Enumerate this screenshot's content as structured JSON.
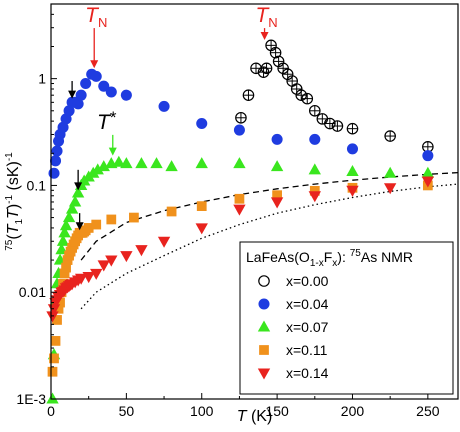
{
  "chart_data": {
    "type": "scatter",
    "title": "",
    "xlabel": "T (K)",
    "ylabel": "75(T1T)-1 (sK)-1",
    "xlim": [
      0,
      270
    ],
    "ylim": [
      0.001,
      5
    ],
    "yscale": "log",
    "grid": false,
    "legend_position": "bottom-right",
    "legend_title": "LaFeAs(O1-xFx): 75As NMR",
    "x_ticks": [
      {
        "value": 0,
        "label": "0"
      },
      {
        "value": 50,
        "label": "50"
      },
      {
        "value": 100,
        "label": "100"
      },
      {
        "value": 150,
        "label": "150"
      },
      {
        "value": 200,
        "label": "200"
      },
      {
        "value": 250,
        "label": "250"
      }
    ],
    "y_ticks": [
      {
        "value": 0.001,
        "label": "1E-3"
      },
      {
        "value": 0.01,
        "label": "0.01"
      },
      {
        "value": 0.1,
        "label": "0.1"
      },
      {
        "value": 1,
        "label": "1"
      }
    ],
    "series": [
      {
        "name": "x=0.00",
        "marker": "circle-open",
        "color": "#000000",
        "x": [
          126,
          131,
          136,
          141,
          143,
          146,
          149,
          151,
          154,
          157,
          160,
          163,
          166,
          170,
          175,
          180,
          185,
          190,
          200,
          225,
          250
        ],
        "y": [
          0.43,
          0.7,
          1.25,
          1.15,
          1.25,
          2.05,
          1.75,
          1.45,
          1.25,
          1.1,
          0.95,
          0.8,
          0.7,
          0.65,
          0.5,
          0.42,
          0.38,
          0.36,
          0.34,
          0.29,
          0.23
        ]
      },
      {
        "name": "x=0.04",
        "marker": "circle",
        "color": "#1f3ce0",
        "x": [
          2,
          3,
          4,
          5,
          6,
          8,
          10,
          12,
          14,
          16,
          18,
          20,
          23,
          27,
          30,
          35,
          40,
          50,
          75,
          100,
          125,
          150,
          175,
          200,
          250
        ],
        "y": [
          0.13,
          0.17,
          0.21,
          0.26,
          0.3,
          0.35,
          0.42,
          0.5,
          0.6,
          0.6,
          0.58,
          0.7,
          0.9,
          1.1,
          1.05,
          0.85,
          0.75,
          0.7,
          0.55,
          0.38,
          0.33,
          0.27,
          0.27,
          0.22,
          0.19
        ]
      },
      {
        "name": "x=0.07",
        "marker": "triangle-up",
        "color": "#3ae61e",
        "x": [
          1,
          2,
          3,
          4,
          5,
          6,
          7,
          8,
          9,
          10,
          12,
          14,
          16,
          18,
          20,
          22,
          25,
          28,
          31,
          35,
          40,
          45,
          50,
          60,
          70,
          80,
          100,
          125,
          150,
          175,
          200,
          225,
          250
        ],
        "y": [
          0.001,
          0.0026,
          0.008,
          0.012,
          0.015,
          0.02,
          0.025,
          0.03,
          0.036,
          0.042,
          0.05,
          0.06,
          0.07,
          0.085,
          0.1,
          0.11,
          0.12,
          0.13,
          0.14,
          0.15,
          0.16,
          0.165,
          0.16,
          0.16,
          0.16,
          0.15,
          0.16,
          0.16,
          0.15,
          0.14,
          0.135,
          0.13,
          0.13
        ]
      },
      {
        "name": "x=0.11",
        "marker": "square",
        "color": "#f0911c",
        "x": [
          1,
          2,
          3,
          4,
          5,
          6,
          7,
          8,
          9,
          10,
          11,
          12,
          13,
          14,
          15,
          16,
          17,
          18,
          19,
          20,
          21,
          22,
          23,
          25,
          30,
          40,
          55,
          80,
          100,
          125,
          150,
          175,
          200,
          250
        ],
        "y": [
          0.0018,
          0.0024,
          0.0035,
          0.0055,
          0.007,
          0.008,
          0.01,
          0.012,
          0.015,
          0.017,
          0.02,
          0.022,
          0.024,
          0.026,
          0.028,
          0.03,
          0.032,
          0.034,
          0.036,
          0.036,
          0.036,
          0.037,
          0.038,
          0.04,
          0.043,
          0.048,
          0.05,
          0.057,
          0.064,
          0.075,
          0.081,
          0.089,
          0.095,
          0.1
        ]
      },
      {
        "name": "x=0.14",
        "marker": "triangle-down",
        "color": "#e8231e",
        "x": [
          1,
          2,
          3,
          4,
          5,
          6,
          7,
          8,
          9,
          10,
          11,
          12,
          13,
          14,
          16,
          18,
          20,
          25,
          30,
          35,
          40,
          50,
          60,
          75,
          100,
          125,
          150,
          175,
          200,
          225,
          250
        ],
        "y": [
          0.006,
          0.007,
          0.008,
          0.0085,
          0.009,
          0.0095,
          0.01,
          0.0102,
          0.0105,
          0.011,
          0.0112,
          0.0115,
          0.0118,
          0.012,
          0.0125,
          0.013,
          0.0135,
          0.014,
          0.015,
          0.018,
          0.02,
          0.022,
          0.025,
          0.03,
          0.04,
          0.06,
          0.07,
          0.08,
          0.09,
          0.095,
          0.11
        ]
      }
    ],
    "fit_curves": [
      {
        "style": "dashed",
        "x": [
          20,
          30,
          50,
          75,
          100,
          125,
          150,
          175,
          200,
          225,
          250,
          270
        ],
        "y": [
          0.02,
          0.03,
          0.045,
          0.058,
          0.07,
          0.082,
          0.093,
          0.103,
          0.112,
          0.12,
          0.127,
          0.132
        ]
      },
      {
        "style": "dotted",
        "x": [
          20,
          30,
          50,
          75,
          100,
          125,
          150,
          175,
          200,
          225,
          250,
          270
        ],
        "y": [
          0.007,
          0.01,
          0.015,
          0.022,
          0.032,
          0.043,
          0.055,
          0.066,
          0.077,
          0.088,
          0.097,
          0.103
        ]
      }
    ],
    "annotations": [
      {
        "text": "T",
        "sub": "N",
        "color": "#e8231e",
        "x": 30,
        "y": 4.2,
        "arrow_to_y": 1.25
      },
      {
        "text": "T",
        "sub": "N",
        "color": "#e8231e",
        "x": 143,
        "y": 4.2,
        "arrow_to_y": 2.3
      },
      {
        "text": "T",
        "sup": "*",
        "color": "#000000",
        "x": 37,
        "y": 0.42,
        "arrow_to_y": 0.19,
        "arrow_color": "#3ae61e"
      },
      {
        "text": "",
        "color": "#000000",
        "x": 14,
        "y": 0.95,
        "arrow_to_y": 0.65
      },
      {
        "text": "",
        "color": "#000000",
        "x": 18,
        "y": 0.14,
        "arrow_to_y": 0.09
      },
      {
        "text": "",
        "color": "#000000",
        "x": 19,
        "y": 0.055,
        "arrow_to_y": 0.038
      }
    ]
  }
}
